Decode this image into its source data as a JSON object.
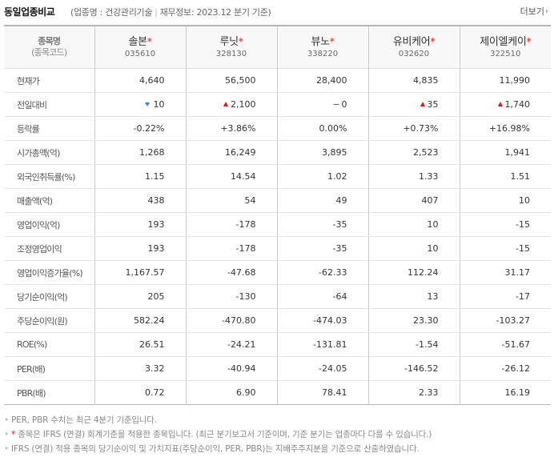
{
  "header": {
    "title": "동일업종비교",
    "industry_label": "(업종명 : 건강관리기술",
    "separator": "|",
    "financial_basis": "재무정보: 2023.12 분기 기준)",
    "more_label": "더보기",
    "more_icon": "triangle-right-icon"
  },
  "table": {
    "header": {
      "label_top": "종목명",
      "label_bottom": "(종목코드)"
    },
    "companies": [
      {
        "name": "솔본",
        "ifrs_mark": "*",
        "code": "035610"
      },
      {
        "name": "루닛",
        "ifrs_mark": "*",
        "code": "328130"
      },
      {
        "name": "뷰노",
        "ifrs_mark": "*",
        "code": "338220"
      },
      {
        "name": "유비케어",
        "ifrs_mark": "*",
        "code": "032620"
      },
      {
        "name": "제이엘케이",
        "ifrs_mark": "*",
        "code": "322510"
      }
    ],
    "rows": [
      {
        "label": "현재가",
        "values": [
          "4,640",
          "56,500",
          "28,400",
          "4,835",
          "11,990"
        ]
      },
      {
        "label": "전일대비",
        "values": [
          "10",
          "2,100",
          "0",
          "35",
          "1,740"
        ],
        "directions": [
          "down",
          "up",
          "flat",
          "up",
          "up"
        ]
      },
      {
        "label": "등락률",
        "values": [
          "-0.22%",
          "+3.86%",
          "0.00%",
          "+0.73%",
          "+16.98%"
        ],
        "directions": [
          "down",
          "up",
          "flat",
          "up",
          "up"
        ]
      },
      {
        "label": "시가총액(억)",
        "values": [
          "1,268",
          "16,249",
          "3,895",
          "2,523",
          "1,941"
        ]
      },
      {
        "label": "외국인취득률(%)",
        "values": [
          "1.15",
          "14.54",
          "1.02",
          "1.33",
          "1.51"
        ]
      },
      {
        "label": "매출액(억)",
        "values": [
          "438",
          "54",
          "49",
          "407",
          "10"
        ]
      },
      {
        "label": "영업이익(억)",
        "values": [
          "193",
          "-178",
          "-35",
          "10",
          "-15"
        ]
      },
      {
        "label": "조정영업이익",
        "values": [
          "193",
          "-178",
          "-35",
          "10",
          "-15"
        ]
      },
      {
        "label": "영업이익증가율(%)",
        "values": [
          "1,167.57",
          "-47.68",
          "-62.33",
          "112.24",
          "31.17"
        ]
      },
      {
        "label": "당기순이익(억)",
        "values": [
          "205",
          "-130",
          "-64",
          "13",
          "-17"
        ]
      },
      {
        "label": "주당순이익(원)",
        "values": [
          "582.24",
          "-470.80",
          "-474.03",
          "23.30",
          "-103.27"
        ]
      },
      {
        "label": "ROE(%)",
        "values": [
          "26.51",
          "-24.21",
          "-131.81",
          "-1.54",
          "-51.67"
        ]
      },
      {
        "label": "PER(배)",
        "values": [
          "3.32",
          "-40.94",
          "-24.05",
          "-146.52",
          "-26.12"
        ]
      },
      {
        "label": "PBR(배)",
        "values": [
          "0.72",
          "6.90",
          "78.41",
          "2.33",
          "16.19"
        ]
      }
    ]
  },
  "colors": {
    "up": "#e3141c",
    "down": "#1f6cd8",
    "header_bg": "#f8f8f8",
    "border": "#b5b5b5"
  },
  "notes": [
    {
      "bullet": "*",
      "text": "PER, PBR 수치는 최근 4분기 기준입니다."
    },
    {
      "bullet": "*",
      "star": "*",
      "text": " 종목은 IFRS (연결) 회계기준을 적용한 종목입니다. (최근 분기보고서 기준이며, 기준 분기는 업종마다 다를 수 있습니다.)"
    },
    {
      "bullet": "*",
      "text": "IFRS (연결) 적용 종목의 당기순이익 및 가치지표(주당순이익, PER, PBR)는 지배주주지분을 기준으로 산출하였습니다."
    }
  ]
}
